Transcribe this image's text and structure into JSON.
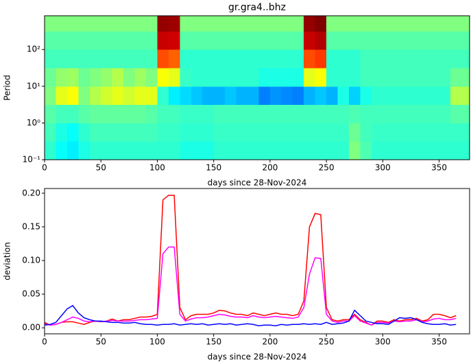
{
  "chart_data": [
    {
      "type": "heatmap",
      "title": "gr.gra4..bhz",
      "xlabel": "days since 28-Nov-2024",
      "ylabel": "Period",
      "colormap": "jet",
      "zlim": [
        0,
        1
      ],
      "log_y": true,
      "xlim": [
        0,
        377
      ],
      "ylim": [
        0.1,
        830
      ],
      "xticks": [
        0,
        50,
        100,
        150,
        200,
        250,
        300,
        350
      ],
      "yticks": [
        {
          "value": 0.1,
          "label": "10⁻¹"
        },
        {
          "value": 1,
          "label": "10⁰"
        },
        {
          "value": 10,
          "label": "10¹"
        },
        {
          "value": 100,
          "label": "10²"
        }
      ],
      "x": [
        0,
        10,
        20,
        30,
        40,
        50,
        60,
        70,
        80,
        90,
        100,
        110,
        120,
        130,
        140,
        150,
        160,
        170,
        180,
        190,
        200,
        210,
        220,
        230,
        240,
        250,
        260,
        270,
        280,
        290,
        300,
        310,
        320,
        330,
        340,
        350,
        360,
        377
      ],
      "y": [
        0.1,
        0.316,
        1,
        3.16,
        10,
        31.6,
        100,
        316,
        830
      ],
      "z": [
        [
          0.42,
          0.38,
          0.36,
          0.4,
          0.42,
          0.42,
          0.42,
          0.42,
          0.42,
          0.42,
          0.42,
          0.42,
          0.4,
          0.4,
          0.4,
          0.42,
          0.42,
          0.42,
          0.42,
          0.42,
          0.42,
          0.42,
          0.42,
          0.42,
          0.42,
          0.42,
          0.42,
          0.5,
          0.45,
          0.42,
          0.42,
          0.42,
          0.42,
          0.42,
          0.42,
          0.42,
          0.42
        ],
        [
          0.44,
          0.4,
          0.38,
          0.42,
          0.44,
          0.44,
          0.44,
          0.44,
          0.44,
          0.44,
          0.43,
          0.43,
          0.42,
          0.42,
          0.42,
          0.43,
          0.43,
          0.43,
          0.43,
          0.43,
          0.43,
          0.43,
          0.43,
          0.43,
          0.43,
          0.43,
          0.43,
          0.48,
          0.44,
          0.43,
          0.43,
          0.43,
          0.43,
          0.43,
          0.43,
          0.43,
          0.43
        ],
        [
          0.46,
          0.44,
          0.44,
          0.46,
          0.47,
          0.47,
          0.47,
          0.47,
          0.47,
          0.46,
          0.44,
          0.44,
          0.43,
          0.43,
          0.43,
          0.44,
          0.44,
          0.44,
          0.44,
          0.44,
          0.44,
          0.44,
          0.44,
          0.44,
          0.44,
          0.44,
          0.44,
          0.45,
          0.44,
          0.44,
          0.44,
          0.44,
          0.44,
          0.44,
          0.44,
          0.44,
          0.46
        ],
        [
          0.5,
          0.6,
          0.62,
          0.5,
          0.55,
          0.58,
          0.6,
          0.58,
          0.6,
          0.6,
          0.42,
          0.36,
          0.34,
          0.32,
          0.3,
          0.3,
          0.32,
          0.3,
          0.3,
          0.25,
          0.27,
          0.26,
          0.25,
          0.3,
          0.32,
          0.3,
          0.4,
          0.33,
          0.4,
          0.42,
          0.42,
          0.42,
          0.42,
          0.42,
          0.42,
          0.42,
          0.55
        ],
        [
          0.48,
          0.52,
          0.53,
          0.48,
          0.5,
          0.52,
          0.55,
          0.5,
          0.53,
          0.5,
          0.62,
          0.6,
          0.43,
          0.42,
          0.42,
          0.42,
          0.42,
          0.42,
          0.42,
          0.4,
          0.4,
          0.4,
          0.4,
          0.6,
          0.62,
          0.42,
          0.42,
          0.42,
          0.44,
          0.44,
          0.44,
          0.44,
          0.44,
          0.44,
          0.44,
          0.44,
          0.48
        ],
        [
          0.44,
          0.44,
          0.44,
          0.44,
          0.44,
          0.44,
          0.44,
          0.44,
          0.44,
          0.44,
          0.8,
          0.78,
          0.42,
          0.42,
          0.42,
          0.42,
          0.42,
          0.42,
          0.42,
          0.42,
          0.42,
          0.42,
          0.42,
          0.8,
          0.82,
          0.42,
          0.42,
          0.42,
          0.44,
          0.44,
          0.44,
          0.44,
          0.44,
          0.44,
          0.44,
          0.44,
          0.44
        ],
        [
          0.46,
          0.46,
          0.46,
          0.46,
          0.46,
          0.46,
          0.46,
          0.46,
          0.46,
          0.46,
          0.93,
          0.92,
          0.46,
          0.46,
          0.46,
          0.46,
          0.46,
          0.46,
          0.46,
          0.46,
          0.46,
          0.46,
          0.46,
          0.93,
          0.95,
          0.46,
          0.46,
          0.46,
          0.46,
          0.46,
          0.46,
          0.46,
          0.46,
          0.46,
          0.46,
          0.46,
          0.46
        ],
        [
          0.5,
          0.5,
          0.5,
          0.5,
          0.5,
          0.5,
          0.5,
          0.5,
          0.5,
          0.5,
          0.98,
          0.97,
          0.5,
          0.5,
          0.5,
          0.5,
          0.5,
          0.5,
          0.5,
          0.5,
          0.5,
          0.5,
          0.5,
          0.98,
          1.0,
          0.5,
          0.5,
          0.5,
          0.5,
          0.5,
          0.5,
          0.5,
          0.5,
          0.5,
          0.5,
          0.5,
          0.5
        ]
      ]
    },
    {
      "type": "line",
      "xlabel": "days since 28-Nov-2024",
      "ylabel": "deviation",
      "xlim": [
        0,
        377
      ],
      "ylim": [
        -0.009,
        0.207
      ],
      "xticks": [
        0,
        50,
        100,
        150,
        200,
        250,
        300,
        350
      ],
      "yticks": [
        {
          "value": 0,
          "label": "0.00"
        },
        {
          "value": 0.05,
          "label": "0.05"
        },
        {
          "value": 0.1,
          "label": "0.10"
        },
        {
          "value": 0.15,
          "label": "0.15"
        },
        {
          "value": 0.2,
          "label": "0.20"
        }
      ],
      "x": [
        0,
        5,
        10,
        15,
        20,
        25,
        30,
        35,
        40,
        45,
        50,
        55,
        60,
        65,
        70,
        75,
        80,
        85,
        90,
        95,
        100,
        105,
        110,
        115,
        120,
        125,
        130,
        135,
        140,
        145,
        150,
        155,
        160,
        165,
        170,
        175,
        180,
        185,
        190,
        195,
        200,
        205,
        210,
        215,
        220,
        225,
        230,
        235,
        240,
        245,
        250,
        255,
        260,
        265,
        270,
        275,
        280,
        285,
        290,
        295,
        300,
        305,
        310,
        315,
        320,
        325,
        330,
        335,
        340,
        345,
        350,
        355,
        360,
        365
      ],
      "series": [
        {
          "color": "#ff0000",
          "values": [
            0.008,
            0.004,
            0.005,
            0.008,
            0.009,
            0.009,
            0.007,
            0.005,
            0.008,
            0.01,
            0.009,
            0.01,
            0.013,
            0.01,
            0.012,
            0.012,
            0.014,
            0.016,
            0.016,
            0.017,
            0.02,
            0.19,
            0.197,
            0.197,
            0.03,
            0.012,
            0.018,
            0.02,
            0.02,
            0.02,
            0.022,
            0.026,
            0.025,
            0.022,
            0.02,
            0.02,
            0.018,
            0.022,
            0.02,
            0.018,
            0.02,
            0.022,
            0.02,
            0.02,
            0.018,
            0.02,
            0.04,
            0.15,
            0.17,
            0.168,
            0.03,
            0.012,
            0.01,
            0.012,
            0.012,
            0.02,
            0.012,
            0.008,
            0.004,
            0.01,
            0.01,
            0.008,
            0.012,
            0.01,
            0.012,
            0.012,
            0.014,
            0.01,
            0.012,
            0.02,
            0.02,
            0.018,
            0.015,
            0.018
          ]
        },
        {
          "color": "#ff00ff",
          "values": [
            0.006,
            0.004,
            0.005,
            0.008,
            0.012,
            0.016,
            0.014,
            0.01,
            0.009,
            0.01,
            0.009,
            0.01,
            0.011,
            0.01,
            0.01,
            0.01,
            0.011,
            0.012,
            0.012,
            0.013,
            0.014,
            0.11,
            0.12,
            0.12,
            0.02,
            0.01,
            0.013,
            0.015,
            0.015,
            0.016,
            0.018,
            0.02,
            0.019,
            0.017,
            0.016,
            0.016,
            0.015,
            0.018,
            0.016,
            0.015,
            0.016,
            0.017,
            0.016,
            0.015,
            0.014,
            0.016,
            0.03,
            0.08,
            0.104,
            0.103,
            0.02,
            0.01,
            0.008,
            0.01,
            0.01,
            0.018,
            0.01,
            0.007,
            0.004,
            0.008,
            0.008,
            0.007,
            0.01,
            0.009,
            0.01,
            0.01,
            0.012,
            0.009,
            0.01,
            0.013,
            0.014,
            0.012,
            0.012,
            0.014
          ]
        },
        {
          "color": "#0000ff",
          "values": [
            0.004,
            0.005,
            0.008,
            0.018,
            0.028,
            0.033,
            0.022,
            0.015,
            0.012,
            0.01,
            0.01,
            0.009,
            0.008,
            0.008,
            0.007,
            0.007,
            0.008,
            0.006,
            0.005,
            0.005,
            0.004,
            0.005,
            0.005,
            0.006,
            0.004,
            0.005,
            0.006,
            0.005,
            0.006,
            0.004,
            0.005,
            0.006,
            0.005,
            0.006,
            0.004,
            0.005,
            0.006,
            0.005,
            0.003,
            0.004,
            0.004,
            0.003,
            0.005,
            0.004,
            0.005,
            0.005,
            0.006,
            0.005,
            0.006,
            0.005,
            0.008,
            0.005,
            0.006,
            0.007,
            0.01,
            0.026,
            0.018,
            0.01,
            0.008,
            0.006,
            0.006,
            0.005,
            0.01,
            0.015,
            0.014,
            0.015,
            0.012,
            0.008,
            0.006,
            0.005,
            0.005,
            0.006,
            0.004,
            0.005
          ]
        }
      ]
    }
  ]
}
